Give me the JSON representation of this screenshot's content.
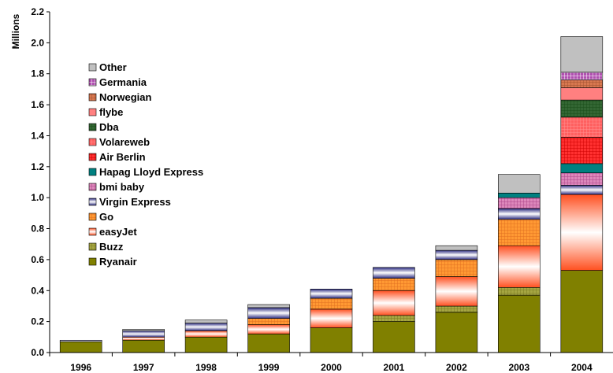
{
  "chart_data": {
    "type": "bar",
    "stacked": true,
    "ylabel": "Millions",
    "ylim": [
      0,
      2.2
    ],
    "yticks": [
      "0.0",
      "0.2",
      "0.4",
      "0.6",
      "0.8",
      "1.0",
      "1.2",
      "1.4",
      "1.6",
      "1.8",
      "2.0",
      "2.2"
    ],
    "categories": [
      "1996",
      "1997",
      "1998",
      "1999",
      "2000",
      "2001",
      "2002",
      "2003",
      "2004"
    ],
    "legend_position": "left",
    "series": [
      {
        "name": "Ryanair",
        "color": "#808000",
        "values": [
          0.07,
          0.08,
          0.1,
          0.12,
          0.16,
          0.2,
          0.26,
          0.37,
          0.53
        ]
      },
      {
        "name": "Buzz",
        "color": "#a6a642",
        "values": [
          0,
          0,
          0,
          0,
          0,
          0.04,
          0.04,
          0.05,
          0
        ]
      },
      {
        "name": "easyJet",
        "color": "#ff7040",
        "values": [
          0,
          0.02,
          0.04,
          0.06,
          0.12,
          0.16,
          0.19,
          0.27,
          0.49
        ]
      },
      {
        "name": "Go",
        "color": "#ff9933",
        "values": [
          0,
          0,
          0,
          0.04,
          0.07,
          0.08,
          0.11,
          0.17,
          0
        ]
      },
      {
        "name": "Virgin Express",
        "color": "#2b2b80",
        "values": [
          0.01,
          0.04,
          0.05,
          0.07,
          0.06,
          0.07,
          0.06,
          0.07,
          0.06
        ]
      },
      {
        "name": "bmi baby",
        "color": "#cc66aa",
        "values": [
          0,
          0,
          0,
          0,
          0,
          0,
          0,
          0.07,
          0.08
        ]
      },
      {
        "name": "Hapag Lloyd Express",
        "color": "#008080",
        "values": [
          0,
          0,
          0,
          0,
          0,
          0,
          0,
          0.03,
          0.06
        ]
      },
      {
        "name": "Air Berlin",
        "color": "#ff2020",
        "values": [
          0,
          0,
          0,
          0,
          0,
          0,
          0,
          0,
          0.17
        ]
      },
      {
        "name": "Volareweb",
        "color": "#ff5a5a",
        "values": [
          0,
          0,
          0,
          0,
          0,
          0,
          0,
          0,
          0.13
        ]
      },
      {
        "name": "Dba",
        "color": "#336633",
        "values": [
          0,
          0,
          0,
          0,
          0,
          0,
          0,
          0,
          0.11
        ]
      },
      {
        "name": "flybe",
        "color": "#ff8080",
        "values": [
          0,
          0,
          0,
          0,
          0,
          0,
          0,
          0,
          0.08
        ]
      },
      {
        "name": "Norwegian",
        "color": "#d87850",
        "values": [
          0,
          0,
          0,
          0,
          0,
          0,
          0,
          0,
          0.05
        ]
      },
      {
        "name": "Germania",
        "color": "#b050b0",
        "values": [
          0,
          0,
          0,
          0,
          0,
          0,
          0,
          0,
          0.05
        ]
      },
      {
        "name": "Other",
        "color": "#c0c0c0",
        "values": [
          0,
          0.01,
          0.02,
          0.02,
          0,
          0,
          0.03,
          0.12,
          0.23
        ]
      }
    ]
  }
}
